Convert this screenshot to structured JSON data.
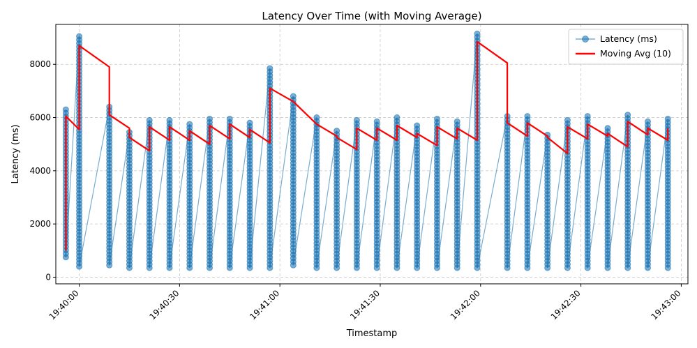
{
  "chart_data": {
    "type": "line",
    "title": "Latency Over Time (with Moving Average)",
    "xlabel": "Timestamp",
    "ylabel": "Latency (ms)",
    "x_ticks": [
      "19:40:00",
      "19:40:30",
      "19:41:00",
      "19:41:30",
      "19:42:00",
      "19:42:30",
      "19:43:00"
    ],
    "y_ticks": [
      "0",
      "2000",
      "4000",
      "6000",
      "8000"
    ],
    "ylim": [
      -250,
      9500
    ],
    "grid": true,
    "legend_position": "top-right",
    "colors": {
      "latency": "#1f77b4",
      "moving_avg": "#ff0000"
    },
    "series": [
      {
        "name": "Latency (ms)",
        "style": "line-with-markers",
        "bursts": [
          {
            "t": "19:39:56",
            "min": 750,
            "max": 6300
          },
          {
            "t": "19:40:00",
            "min": 400,
            "max": 9050
          },
          {
            "t": "19:40:09",
            "min": 450,
            "max": 6400
          },
          {
            "t": "19:40:15",
            "min": 350,
            "max": 5450
          },
          {
            "t": "19:40:21",
            "min": 350,
            "max": 5900
          },
          {
            "t": "19:40:27",
            "min": 350,
            "max": 5900
          },
          {
            "t": "19:40:33",
            "min": 350,
            "max": 5750
          },
          {
            "t": "19:40:39",
            "min": 350,
            "max": 5950
          },
          {
            "t": "19:40:45",
            "min": 350,
            "max": 5950
          },
          {
            "t": "19:40:51",
            "min": 350,
            "max": 5800
          },
          {
            "t": "19:40:57",
            "min": 350,
            "max": 7850
          },
          {
            "t": "19:41:04",
            "min": 450,
            "max": 6800
          },
          {
            "t": "19:41:11",
            "min": 350,
            "max": 6000
          },
          {
            "t": "19:41:17",
            "min": 350,
            "max": 5500
          },
          {
            "t": "19:41:23",
            "min": 350,
            "max": 5900
          },
          {
            "t": "19:41:29",
            "min": 350,
            "max": 5850
          },
          {
            "t": "19:41:35",
            "min": 350,
            "max": 6000
          },
          {
            "t": "19:41:41",
            "min": 350,
            "max": 5700
          },
          {
            "t": "19:41:47",
            "min": 350,
            "max": 5950
          },
          {
            "t": "19:41:53",
            "min": 350,
            "max": 5850
          },
          {
            "t": "19:41:59",
            "min": 350,
            "max": 9150
          },
          {
            "t": "19:42:08",
            "min": 350,
            "max": 6050
          },
          {
            "t": "19:42:14",
            "min": 350,
            "max": 6050
          },
          {
            "t": "19:42:20",
            "min": 350,
            "max": 5350
          },
          {
            "t": "19:42:26",
            "min": 350,
            "max": 5900
          },
          {
            "t": "19:42:32",
            "min": 350,
            "max": 6050
          },
          {
            "t": "19:42:38",
            "min": 350,
            "max": 5600
          },
          {
            "t": "19:42:44",
            "min": 350,
            "max": 6100
          },
          {
            "t": "19:42:50",
            "min": 350,
            "max": 5850
          },
          {
            "t": "19:42:56",
            "min": 350,
            "max": 5950
          }
        ]
      },
      {
        "name": "Moving Avg (10)",
        "style": "line",
        "points": [
          [
            "19:39:56",
            1000
          ],
          [
            "19:39:56",
            6050
          ],
          [
            "19:40:00",
            5550
          ],
          [
            "19:40:00",
            8700
          ],
          [
            "19:40:09",
            7900
          ],
          [
            "19:40:09",
            6100
          ],
          [
            "19:40:15",
            5600
          ],
          [
            "19:40:15",
            5250
          ],
          [
            "19:40:21",
            4750
          ],
          [
            "19:40:21",
            5650
          ],
          [
            "19:40:27",
            5150
          ],
          [
            "19:40:27",
            5650
          ],
          [
            "19:40:33",
            5150
          ],
          [
            "19:40:33",
            5500
          ],
          [
            "19:40:39",
            5000
          ],
          [
            "19:40:39",
            5700
          ],
          [
            "19:40:45",
            5200
          ],
          [
            "19:40:45",
            5750
          ],
          [
            "19:40:51",
            5250
          ],
          [
            "19:40:51",
            5550
          ],
          [
            "19:40:57",
            5050
          ],
          [
            "19:40:57",
            7100
          ],
          [
            "19:41:04",
            6600
          ],
          [
            "19:41:11",
            5750
          ],
          [
            "19:41:17",
            5300
          ],
          [
            "19:41:17",
            5250
          ],
          [
            "19:41:23",
            4800
          ],
          [
            "19:41:23",
            5600
          ],
          [
            "19:41:29",
            5150
          ],
          [
            "19:41:29",
            5600
          ],
          [
            "19:41:35",
            5150
          ],
          [
            "19:41:35",
            5700
          ],
          [
            "19:41:41",
            5250
          ],
          [
            "19:41:41",
            5400
          ],
          [
            "19:41:47",
            4950
          ],
          [
            "19:41:47",
            5650
          ],
          [
            "19:41:53",
            5200
          ],
          [
            "19:41:53",
            5600
          ],
          [
            "19:41:59",
            5150
          ],
          [
            "19:41:59",
            8850
          ],
          [
            "19:42:08",
            8050
          ],
          [
            "19:42:08",
            5800
          ],
          [
            "19:42:14",
            5300
          ],
          [
            "19:42:14",
            5800
          ],
          [
            "19:42:20",
            5300
          ],
          [
            "19:42:20",
            5250
          ],
          [
            "19:42:26",
            4650
          ],
          [
            "19:42:26",
            5650
          ],
          [
            "19:42:32",
            5200
          ],
          [
            "19:42:32",
            5750
          ],
          [
            "19:42:38",
            5300
          ],
          [
            "19:42:38",
            5400
          ],
          [
            "19:42:44",
            4900
          ],
          [
            "19:42:44",
            5850
          ],
          [
            "19:42:50",
            5350
          ],
          [
            "19:42:50",
            5600
          ],
          [
            "19:42:56",
            5150
          ],
          [
            "19:42:56",
            5600
          ]
        ]
      }
    ]
  }
}
